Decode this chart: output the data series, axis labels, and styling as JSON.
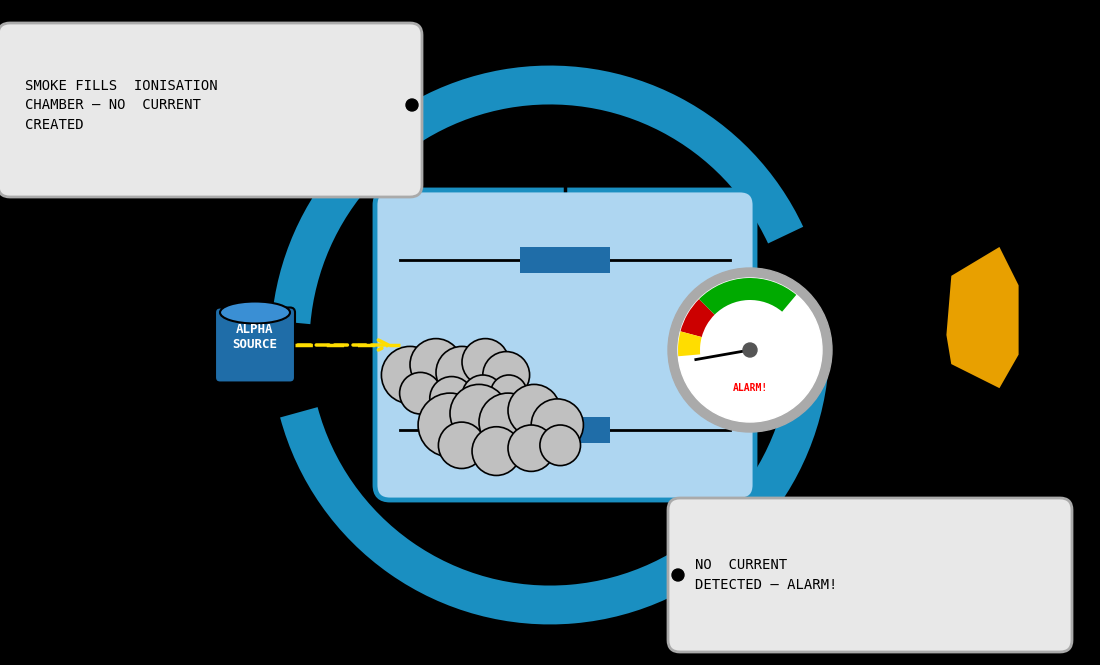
{
  "bg_color": "#000000",
  "label_box1_text": "SMOKE FILLS  IONISATION\nCHAMBER – NO  CURRENT\nCREATED",
  "label_box2_text": "NO  CURRENT\nDETECTED – ALARM!",
  "alpha_source_text": "ALPHA\nSOURCE",
  "alarm_text": "ALARM!",
  "chamber_color": "#aed6f1",
  "chamber_border": "#1a8fc1",
  "electrode_color": "#1f6da8",
  "alpha_source_color": "#1f6da8",
  "arrow_color": "#1a8fc1",
  "ray_color": "#ffdd00",
  "smoke_color": "#c0c0c0",
  "bell_color": "#e8a000",
  "gauge_red": "#cc0000",
  "gauge_yellow": "#ffdd00",
  "gauge_green": "#00aa00",
  "label_box_bg": "#e8e8e8",
  "label_box_border": "#aaaaaa"
}
